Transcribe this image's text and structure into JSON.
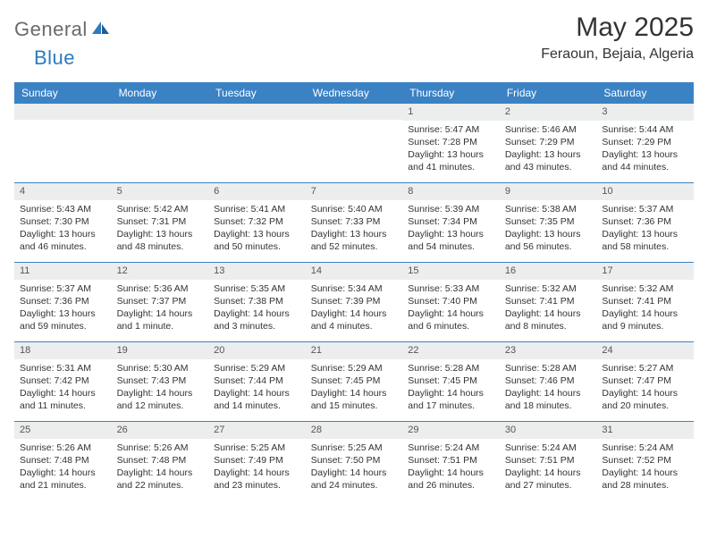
{
  "brand": {
    "general": "General",
    "blue": "Blue"
  },
  "title": "May 2025",
  "location": "Feraoun, Bejaia, Algeria",
  "colors": {
    "header_bg": "#3b82c4",
    "header_text": "#ffffff",
    "daynum_bg": "#eceded",
    "rule": "#3b82c4",
    "text": "#333333",
    "logo_gray": "#6a6a6a",
    "logo_blue": "#2c7bbf"
  },
  "weekdays": [
    "Sunday",
    "Monday",
    "Tuesday",
    "Wednesday",
    "Thursday",
    "Friday",
    "Saturday"
  ],
  "weeks": [
    [
      null,
      null,
      null,
      null,
      {
        "n": "1",
        "sr": "Sunrise: 5:47 AM",
        "ss": "Sunset: 7:28 PM",
        "dl": "Daylight: 13 hours and 41 minutes."
      },
      {
        "n": "2",
        "sr": "Sunrise: 5:46 AM",
        "ss": "Sunset: 7:29 PM",
        "dl": "Daylight: 13 hours and 43 minutes."
      },
      {
        "n": "3",
        "sr": "Sunrise: 5:44 AM",
        "ss": "Sunset: 7:29 PM",
        "dl": "Daylight: 13 hours and 44 minutes."
      }
    ],
    [
      {
        "n": "4",
        "sr": "Sunrise: 5:43 AM",
        "ss": "Sunset: 7:30 PM",
        "dl": "Daylight: 13 hours and 46 minutes."
      },
      {
        "n": "5",
        "sr": "Sunrise: 5:42 AM",
        "ss": "Sunset: 7:31 PM",
        "dl": "Daylight: 13 hours and 48 minutes."
      },
      {
        "n": "6",
        "sr": "Sunrise: 5:41 AM",
        "ss": "Sunset: 7:32 PM",
        "dl": "Daylight: 13 hours and 50 minutes."
      },
      {
        "n": "7",
        "sr": "Sunrise: 5:40 AM",
        "ss": "Sunset: 7:33 PM",
        "dl": "Daylight: 13 hours and 52 minutes."
      },
      {
        "n": "8",
        "sr": "Sunrise: 5:39 AM",
        "ss": "Sunset: 7:34 PM",
        "dl": "Daylight: 13 hours and 54 minutes."
      },
      {
        "n": "9",
        "sr": "Sunrise: 5:38 AM",
        "ss": "Sunset: 7:35 PM",
        "dl": "Daylight: 13 hours and 56 minutes."
      },
      {
        "n": "10",
        "sr": "Sunrise: 5:37 AM",
        "ss": "Sunset: 7:36 PM",
        "dl": "Daylight: 13 hours and 58 minutes."
      }
    ],
    [
      {
        "n": "11",
        "sr": "Sunrise: 5:37 AM",
        "ss": "Sunset: 7:36 PM",
        "dl": "Daylight: 13 hours and 59 minutes."
      },
      {
        "n": "12",
        "sr": "Sunrise: 5:36 AM",
        "ss": "Sunset: 7:37 PM",
        "dl": "Daylight: 14 hours and 1 minute."
      },
      {
        "n": "13",
        "sr": "Sunrise: 5:35 AM",
        "ss": "Sunset: 7:38 PM",
        "dl": "Daylight: 14 hours and 3 minutes."
      },
      {
        "n": "14",
        "sr": "Sunrise: 5:34 AM",
        "ss": "Sunset: 7:39 PM",
        "dl": "Daylight: 14 hours and 4 minutes."
      },
      {
        "n": "15",
        "sr": "Sunrise: 5:33 AM",
        "ss": "Sunset: 7:40 PM",
        "dl": "Daylight: 14 hours and 6 minutes."
      },
      {
        "n": "16",
        "sr": "Sunrise: 5:32 AM",
        "ss": "Sunset: 7:41 PM",
        "dl": "Daylight: 14 hours and 8 minutes."
      },
      {
        "n": "17",
        "sr": "Sunrise: 5:32 AM",
        "ss": "Sunset: 7:41 PM",
        "dl": "Daylight: 14 hours and 9 minutes."
      }
    ],
    [
      {
        "n": "18",
        "sr": "Sunrise: 5:31 AM",
        "ss": "Sunset: 7:42 PM",
        "dl": "Daylight: 14 hours and 11 minutes."
      },
      {
        "n": "19",
        "sr": "Sunrise: 5:30 AM",
        "ss": "Sunset: 7:43 PM",
        "dl": "Daylight: 14 hours and 12 minutes."
      },
      {
        "n": "20",
        "sr": "Sunrise: 5:29 AM",
        "ss": "Sunset: 7:44 PM",
        "dl": "Daylight: 14 hours and 14 minutes."
      },
      {
        "n": "21",
        "sr": "Sunrise: 5:29 AM",
        "ss": "Sunset: 7:45 PM",
        "dl": "Daylight: 14 hours and 15 minutes."
      },
      {
        "n": "22",
        "sr": "Sunrise: 5:28 AM",
        "ss": "Sunset: 7:45 PM",
        "dl": "Daylight: 14 hours and 17 minutes."
      },
      {
        "n": "23",
        "sr": "Sunrise: 5:28 AM",
        "ss": "Sunset: 7:46 PM",
        "dl": "Daylight: 14 hours and 18 minutes."
      },
      {
        "n": "24",
        "sr": "Sunrise: 5:27 AM",
        "ss": "Sunset: 7:47 PM",
        "dl": "Daylight: 14 hours and 20 minutes."
      }
    ],
    [
      {
        "n": "25",
        "sr": "Sunrise: 5:26 AM",
        "ss": "Sunset: 7:48 PM",
        "dl": "Daylight: 14 hours and 21 minutes."
      },
      {
        "n": "26",
        "sr": "Sunrise: 5:26 AM",
        "ss": "Sunset: 7:48 PM",
        "dl": "Daylight: 14 hours and 22 minutes."
      },
      {
        "n": "27",
        "sr": "Sunrise: 5:25 AM",
        "ss": "Sunset: 7:49 PM",
        "dl": "Daylight: 14 hours and 23 minutes."
      },
      {
        "n": "28",
        "sr": "Sunrise: 5:25 AM",
        "ss": "Sunset: 7:50 PM",
        "dl": "Daylight: 14 hours and 24 minutes."
      },
      {
        "n": "29",
        "sr": "Sunrise: 5:24 AM",
        "ss": "Sunset: 7:51 PM",
        "dl": "Daylight: 14 hours and 26 minutes."
      },
      {
        "n": "30",
        "sr": "Sunrise: 5:24 AM",
        "ss": "Sunset: 7:51 PM",
        "dl": "Daylight: 14 hours and 27 minutes."
      },
      {
        "n": "31",
        "sr": "Sunrise: 5:24 AM",
        "ss": "Sunset: 7:52 PM",
        "dl": "Daylight: 14 hours and 28 minutes."
      }
    ]
  ]
}
